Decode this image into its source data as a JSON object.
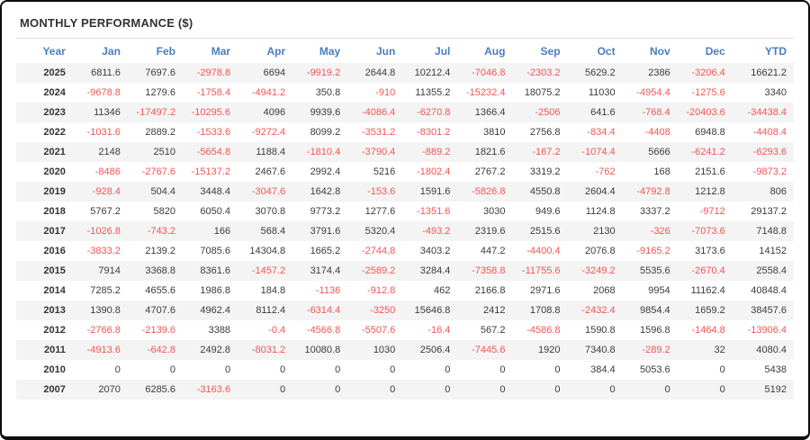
{
  "title": "MONTHLY PERFORMANCE ($)",
  "colors": {
    "header_text": "#4a7ebc",
    "negative_value": "#f25555",
    "positive_value": "#3b3b3b",
    "stripe_row": "#f4f4f4",
    "frame_border": "#0d0d0d"
  },
  "chart_data": {
    "type": "table",
    "title": "MONTHLY PERFORMANCE ($)",
    "columns": [
      "Year",
      "Jan",
      "Feb",
      "Mar",
      "Apr",
      "May",
      "Jun",
      "Jul",
      "Aug",
      "Sep",
      "Oct",
      "Nov",
      "Dec",
      "YTD"
    ],
    "rows": [
      {
        "year": "2025",
        "values": [
          "6811.6",
          "7697.6",
          "-2978.8",
          "6694",
          "-9919.2",
          "2644.8",
          "10212.4",
          "-7046.8",
          "-2303.2",
          "5629.2",
          "2386",
          "-3206.4"
        ],
        "ytd": "16621.2"
      },
      {
        "year": "2024",
        "values": [
          "-9678.8",
          "1279.6",
          "-1758.4",
          "-4941.2",
          "350.8",
          "-910",
          "11355.2",
          "-15232.4",
          "18075.2",
          "11030",
          "-4954.4",
          "-1275.6"
        ],
        "ytd": "3340"
      },
      {
        "year": "2023",
        "values": [
          "11346",
          "-17497.2",
          "-10295.6",
          "4096",
          "9939.6",
          "-4086.4",
          "-6270.8",
          "1366.4",
          "-2506",
          "641.6",
          "-768.4",
          "-20403.6"
        ],
        "ytd": "-34438.4"
      },
      {
        "year": "2022",
        "values": [
          "-1031.6",
          "2889.2",
          "-1533.6",
          "-9272.4",
          "8099.2",
          "-3531.2",
          "-8301.2",
          "3810",
          "2756.8",
          "-834.4",
          "-4408",
          "6948.8"
        ],
        "ytd": "-4408.4"
      },
      {
        "year": "2021",
        "values": [
          "2148",
          "2510",
          "-5654.8",
          "1188.4",
          "-1810.4",
          "-3790.4",
          "-889.2",
          "1821.6",
          "-167.2",
          "-1074.4",
          "5666",
          "-6241.2"
        ],
        "ytd": "-6293.6"
      },
      {
        "year": "2020",
        "values": [
          "-8486",
          "-2767.6",
          "-15137.2",
          "2467.6",
          "2992.4",
          "5216",
          "-1802.4",
          "2767.2",
          "3319.2",
          "-762",
          "168",
          "2151.6"
        ],
        "ytd": "-9873.2"
      },
      {
        "year": "2019",
        "values": [
          "-928.4",
          "504.4",
          "3448.4",
          "-3047.6",
          "1642.8",
          "-153.6",
          "1591.6",
          "-5826.8",
          "4550.8",
          "2604.4",
          "-4792.8",
          "1212.8"
        ],
        "ytd": "806"
      },
      {
        "year": "2018",
        "values": [
          "5767.2",
          "5820",
          "6050.4",
          "3070.8",
          "9773.2",
          "1277.6",
          "-1351.6",
          "3030",
          "949.6",
          "1124.8",
          "3337.2",
          "-9712"
        ],
        "ytd": "29137.2"
      },
      {
        "year": "2017",
        "values": [
          "-1026.8",
          "-743.2",
          "166",
          "568.4",
          "3791.6",
          "5320.4",
          "-493.2",
          "2319.6",
          "2515.6",
          "2130",
          "-326",
          "-7073.6"
        ],
        "ytd": "7148.8"
      },
      {
        "year": "2016",
        "values": [
          "-3833.2",
          "2139.2",
          "7085.6",
          "14304.8",
          "1665.2",
          "-2744.8",
          "3403.2",
          "447.2",
          "-4400.4",
          "2076.8",
          "-9165.2",
          "3173.6"
        ],
        "ytd": "14152"
      },
      {
        "year": "2015",
        "values": [
          "7914",
          "3368.8",
          "8361.6",
          "-1457.2",
          "3174.4",
          "-2589.2",
          "3284.4",
          "-7358.8",
          "-11755.6",
          "-3249.2",
          "5535.6",
          "-2670.4"
        ],
        "ytd": "2558.4"
      },
      {
        "year": "2014",
        "values": [
          "7285.2",
          "4655.6",
          "1986.8",
          "184.8",
          "-1136",
          "-912.8",
          "462",
          "2166.8",
          "2971.6",
          "2068",
          "9954",
          "11162.4"
        ],
        "ytd": "40848.4"
      },
      {
        "year": "2013",
        "values": [
          "1390.8",
          "4707.6",
          "4962.4",
          "8112.4",
          "-6314.4",
          "-3250",
          "15646.8",
          "2412",
          "1708.8",
          "-2432.4",
          "9854.4",
          "1659.2"
        ],
        "ytd": "38457.6"
      },
      {
        "year": "2012",
        "values": [
          "-2766.8",
          "-2139.6",
          "3388",
          "-0.4",
          "-4566.8",
          "-5507.6",
          "-16.4",
          "567.2",
          "-4586.8",
          "1590.8",
          "1596.8",
          "-1464.8"
        ],
        "ytd": "-13906.4"
      },
      {
        "year": "2011",
        "values": [
          "-4913.6",
          "-642.8",
          "2492.8",
          "-8031.2",
          "10080.8",
          "1030",
          "2506.4",
          "-7445.6",
          "1920",
          "7340.8",
          "-289.2",
          "32"
        ],
        "ytd": "4080.4"
      },
      {
        "year": "2010",
        "values": [
          "0",
          "0",
          "0",
          "0",
          "0",
          "0",
          "0",
          "0",
          "0",
          "384.4",
          "5053.6",
          "0"
        ],
        "ytd": "5438"
      },
      {
        "year": "2007",
        "values": [
          "2070",
          "6285.6",
          "-3163.6",
          "0",
          "0",
          "0",
          "0",
          "0",
          "0",
          "0",
          "0",
          "0"
        ],
        "ytd": "5192"
      }
    ]
  }
}
